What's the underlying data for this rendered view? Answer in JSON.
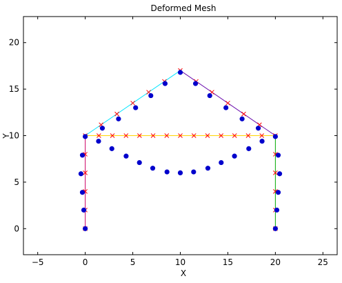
{
  "chart_data": {
    "type": "scatter",
    "title": "Deformed Mesh",
    "xlabel": "X",
    "ylabel": "Y",
    "xlim": [
      -6.5,
      26.5
    ],
    "ylim": [
      -2.8,
      22.8
    ],
    "xticks": [
      -5,
      0,
      5,
      10,
      15,
      20,
      25
    ],
    "yticks": [
      0,
      5,
      10,
      15,
      20
    ],
    "grid": false,
    "colors": {
      "undeformed_marker": "#ff0000",
      "deformed_marker": "#0000cc",
      "left_column": "#cc0066",
      "right_column": "#00aa00",
      "left_rafter": "#00e5ff",
      "right_rafter": "#6a0dad",
      "tie_beam": "#ffd400"
    },
    "members": [
      {
        "name": "left_column",
        "x": [
          0,
          0
        ],
        "y": [
          0,
          10
        ]
      },
      {
        "name": "right_column",
        "x": [
          20,
          20
        ],
        "y": [
          0,
          10
        ]
      },
      {
        "name": "left_rafter",
        "x": [
          0,
          10
        ],
        "y": [
          10,
          17
        ]
      },
      {
        "name": "right_rafter",
        "x": [
          10,
          20
        ],
        "y": [
          17,
          10
        ]
      },
      {
        "name": "tie_beam",
        "x": [
          0,
          20
        ],
        "y": [
          10,
          10
        ]
      }
    ],
    "series": [
      {
        "marker": "x",
        "points": [
          [
            0,
            0
          ],
          [
            0,
            2
          ],
          [
            0,
            4
          ],
          [
            0,
            6
          ],
          [
            0,
            8
          ],
          [
            0,
            10
          ],
          [
            20,
            0
          ],
          [
            20,
            2
          ],
          [
            20,
            4
          ],
          [
            20,
            6
          ],
          [
            20,
            8
          ],
          [
            20,
            10
          ],
          [
            1.43,
            10
          ],
          [
            2.86,
            10
          ],
          [
            4.29,
            10
          ],
          [
            5.71,
            10
          ],
          [
            7.14,
            10
          ],
          [
            8.57,
            10
          ],
          [
            10,
            10
          ],
          [
            11.43,
            10
          ],
          [
            12.86,
            10
          ],
          [
            14.29,
            10
          ],
          [
            15.71,
            10
          ],
          [
            17.14,
            10
          ],
          [
            18.57,
            10
          ],
          [
            1.67,
            11.17
          ],
          [
            3.33,
            12.33
          ],
          [
            5,
            13.5
          ],
          [
            6.67,
            14.67
          ],
          [
            8.33,
            15.83
          ],
          [
            10,
            17
          ],
          [
            11.67,
            15.83
          ],
          [
            13.33,
            14.67
          ],
          [
            15,
            13.5
          ],
          [
            16.67,
            12.33
          ],
          [
            18.33,
            11.17
          ]
        ]
      },
      {
        "marker": "o",
        "points": [
          [
            0,
            0
          ],
          [
            -0.15,
            2
          ],
          [
            -0.3,
            3.9
          ],
          [
            -0.45,
            5.9
          ],
          [
            -0.3,
            7.9
          ],
          [
            0,
            9.9
          ],
          [
            20,
            0
          ],
          [
            20.15,
            2
          ],
          [
            20.3,
            3.9
          ],
          [
            20.45,
            5.9
          ],
          [
            20.3,
            7.9
          ],
          [
            20,
            9.9
          ],
          [
            1.4,
            9.4
          ],
          [
            2.8,
            8.6
          ],
          [
            4.3,
            7.8
          ],
          [
            5.7,
            7.1
          ],
          [
            7.1,
            6.5
          ],
          [
            8.6,
            6.1
          ],
          [
            10,
            6
          ],
          [
            11.4,
            6.1
          ],
          [
            12.9,
            6.5
          ],
          [
            14.3,
            7.1
          ],
          [
            15.7,
            7.8
          ],
          [
            17.2,
            8.6
          ],
          [
            18.6,
            9.4
          ],
          [
            1.8,
            10.8
          ],
          [
            3.5,
            11.8
          ],
          [
            5.3,
            13
          ],
          [
            6.9,
            14.3
          ],
          [
            8.4,
            15.6
          ],
          [
            10,
            16.8
          ],
          [
            11.6,
            15.6
          ],
          [
            13.1,
            14.3
          ],
          [
            14.8,
            13
          ],
          [
            16.5,
            11.8
          ],
          [
            18.2,
            10.8
          ]
        ]
      }
    ]
  }
}
